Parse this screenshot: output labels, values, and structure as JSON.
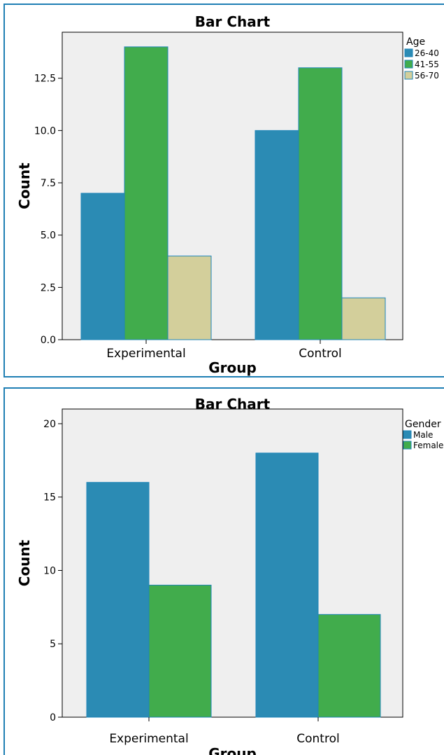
{
  "chart_data": [
    {
      "type": "bar",
      "title": "Bar Chart",
      "xlabel": "Group",
      "ylabel": "Count",
      "categories": [
        "Experimental",
        "Control"
      ],
      "ylim": [
        0,
        14.7
      ],
      "yticks": [
        "0.0",
        "2.5",
        "5.0",
        "7.5",
        "10.0",
        "12.5"
      ],
      "legend": {
        "title": "Age",
        "position": "right"
      },
      "grid": false,
      "series": [
        {
          "name": "26-40",
          "color": "#2b8bb4",
          "values": [
            7,
            10
          ]
        },
        {
          "name": "41-55",
          "color": "#41ac4c",
          "values": [
            14,
            13
          ]
        },
        {
          "name": "56-70",
          "color": "#d3cf9b",
          "values": [
            4,
            2
          ]
        }
      ]
    },
    {
      "type": "bar",
      "title": "Bar Chart",
      "xlabel": "Group",
      "ylabel": "Count",
      "categories": [
        "Experimental",
        "Control"
      ],
      "ylim": [
        0,
        21
      ],
      "yticks": [
        "0",
        "5",
        "10",
        "15",
        "20"
      ],
      "legend": {
        "title": "Gender",
        "position": "right"
      },
      "grid": false,
      "series": [
        {
          "name": "Male",
          "color": "#2b8bb4",
          "values": [
            16,
            18
          ]
        },
        {
          "name": "Female",
          "color": "#41ac4c",
          "values": [
            9,
            7
          ]
        }
      ]
    }
  ],
  "colors": {
    "plot_background": "#efefef",
    "frame_border": "#1f7fb4",
    "bar_outline": "#1f86b9"
  }
}
